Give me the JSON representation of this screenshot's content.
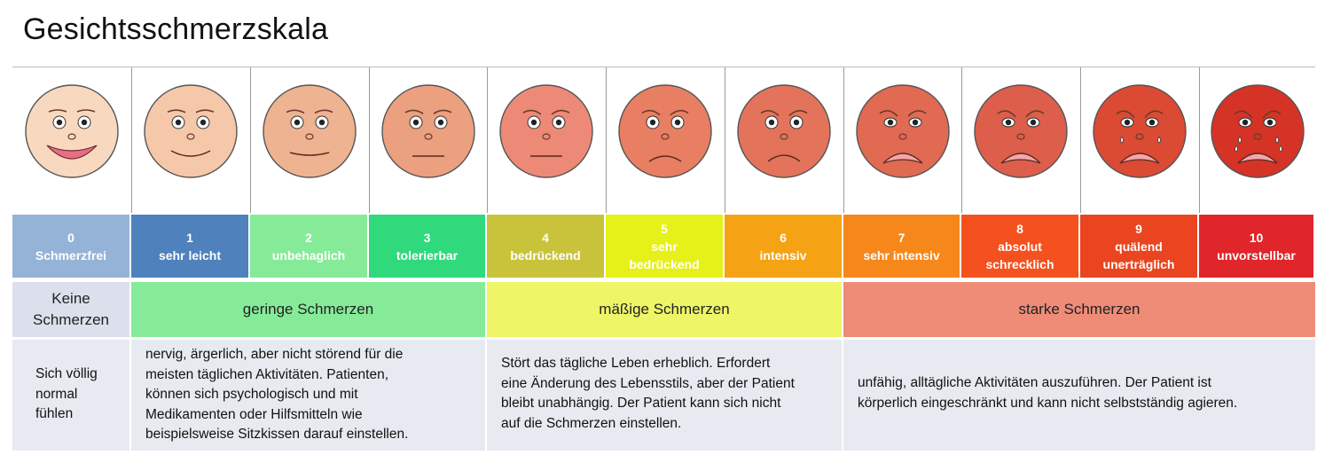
{
  "title": "Gesichtsschmerzskala",
  "levels": [
    {
      "num": "0",
      "label": "Schmerzfrei",
      "color": "#95b3d7",
      "face": "#f8d9bf"
    },
    {
      "num": "1",
      "label": "sehr leicht",
      "color": "#4f81bd",
      "face": "#f5c8aa"
    },
    {
      "num": "2",
      "label": "unbehaglich",
      "color": "#86eb98",
      "face": "#eeb390"
    },
    {
      "num": "3",
      "label": "tolerierbar",
      "color": "#2fd97c",
      "face": "#eba07f"
    },
    {
      "num": "4",
      "label": "bedrückend",
      "color": "#c9c33c",
      "face": "#ed8a77"
    },
    {
      "num": "5",
      "label": "sehr\nbedrückend",
      "color": "#e6f019",
      "face": "#e87e62"
    },
    {
      "num": "6",
      "label": "intensiv",
      "color": "#f5a314",
      "face": "#e3735a"
    },
    {
      "num": "7",
      "label": "sehr intensiv",
      "color": "#f6871a",
      "face": "#e06a52"
    },
    {
      "num": "8",
      "label": "absolut\nschrecklich",
      "color": "#f4511e",
      "face": "#dc5e4b"
    },
    {
      "num": "9",
      "label": "quälend\nunerträglich",
      "color": "#ea4520",
      "face": "#db4a33"
    },
    {
      "num": "10",
      "label": "unvorstellbar",
      "color": "#e0262a",
      "face": "#d53325"
    }
  ],
  "categories": [
    {
      "label": "Keine\nSchmerzen",
      "color": "#dbe0ec"
    },
    {
      "label": "geringe Schmerzen",
      "color": "#86eb98"
    },
    {
      "label": "mäßige Schmerzen",
      "color": "#eef566"
    },
    {
      "label": "starke Schmerzen",
      "color": "#ee8c77"
    }
  ],
  "descriptions": [
    "Sich völlig\nnormal\nfühlen",
    "nervig, ärgerlich, aber nicht störend für die\nmeisten täglichen Aktivitäten. Patienten,\nkönnen sich psychologisch und mit\nMedikamenten oder Hilfsmitteln  wie\nbeispielsweise Sitzkissen darauf einstellen.",
    "Stört das tägliche Leben erheblich. Erfordert\neine Änderung des Lebensstils, aber der Patient\nbleibt unabhängig. Der Patient kann sich nicht\nauf die Schmerzen einstellen.",
    "unfähig, alltägliche Aktivitäten auszuführen. Der Patient ist\nkörperlich eingeschränkt und kann nicht selbstständig agieren."
  ]
}
